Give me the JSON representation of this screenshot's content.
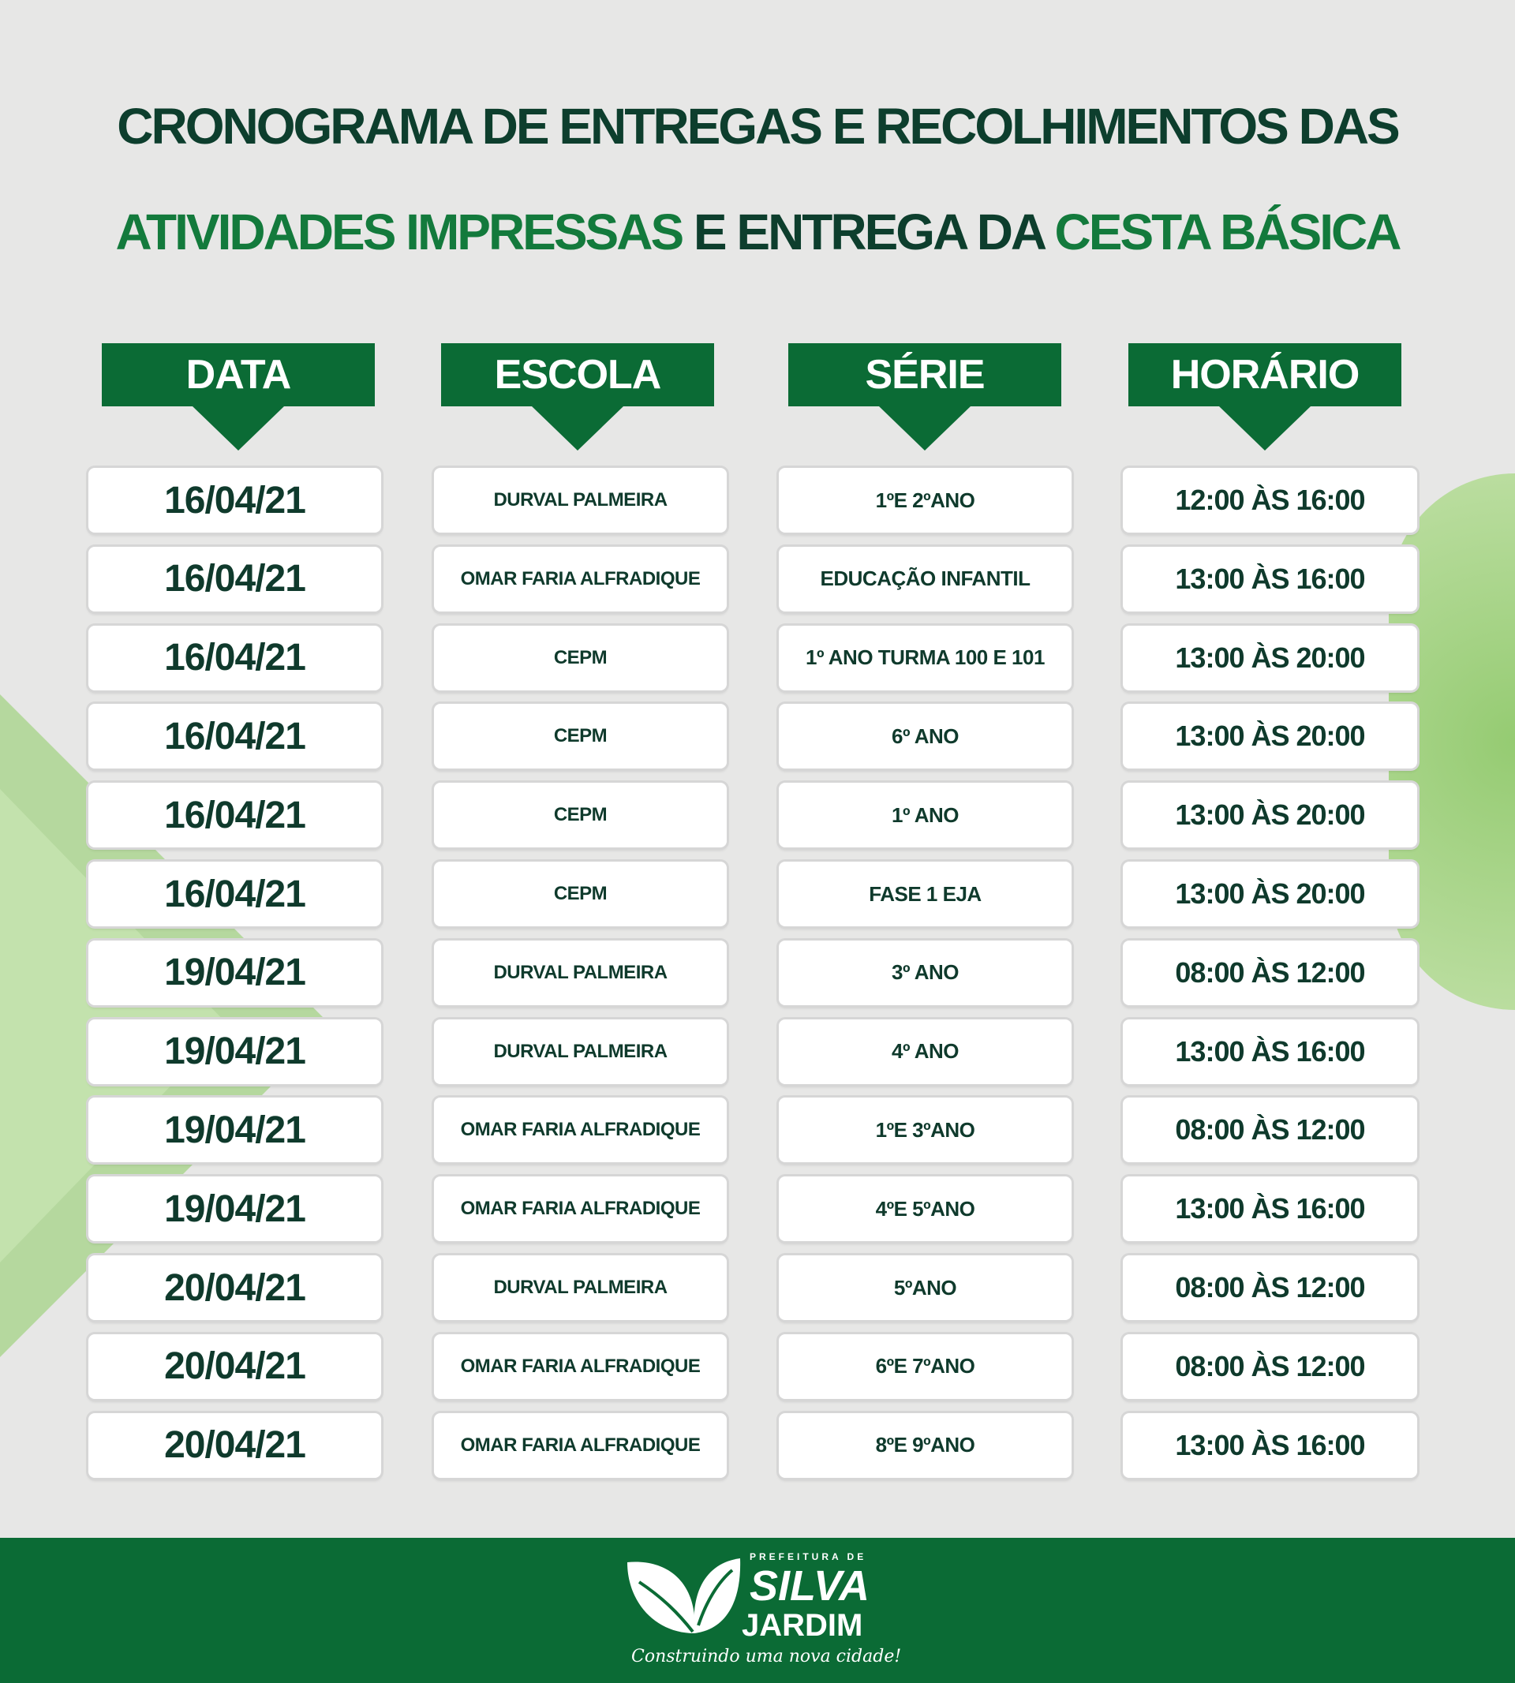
{
  "title": {
    "line1": "CRONOGRAMA DE ENTREGAS E RECOLHIMENTOS DAS",
    "line2_part1": "ATIVIDADES IMPRESSAS",
    "line2_part2": " E ENTREGA DA ",
    "line2_part3": "CESTA BÁSICA"
  },
  "colors": {
    "brand_green": "#0b6b35",
    "accent_green": "#137a3c",
    "text_dark": "#0d3e2d"
  },
  "headers": [
    "DATA",
    "ESCOLA",
    "SÉRIE",
    "HORÁRIO"
  ],
  "rows": [
    [
      "16/04/21",
      "DURVAL PALMEIRA",
      "1ºE 2ºANO",
      "12:00 ÀS 16:00"
    ],
    [
      "16/04/21",
      "OMAR FARIA ALFRADIQUE",
      "EDUCAÇÃO INFANTIL",
      "13:00 ÀS 16:00"
    ],
    [
      "16/04/21",
      "CEPM",
      "1º ANO TURMA 100 E 101",
      "13:00 ÀS 20:00"
    ],
    [
      "16/04/21",
      "CEPM",
      "6º ANO",
      "13:00 ÀS 20:00"
    ],
    [
      "16/04/21",
      "CEPM",
      "1º ANO",
      "13:00 ÀS 20:00"
    ],
    [
      "16/04/21",
      "CEPM",
      "FASE 1 EJA",
      "13:00 ÀS 20:00"
    ],
    [
      "19/04/21",
      "DURVAL PALMEIRA",
      "3º ANO",
      "08:00 ÀS 12:00"
    ],
    [
      "19/04/21",
      "DURVAL PALMEIRA",
      "4º ANO",
      "13:00 ÀS 16:00"
    ],
    [
      "19/04/21",
      "OMAR FARIA ALFRADIQUE",
      "1ºE 3ºANO",
      "08:00 ÀS 12:00"
    ],
    [
      "19/04/21",
      "OMAR FARIA ALFRADIQUE",
      "4ºE 5ºANO",
      "13:00 ÀS 16:00"
    ],
    [
      "20/04/21",
      "DURVAL PALMEIRA",
      "5ºANO",
      "08:00 ÀS 12:00"
    ],
    [
      "20/04/21",
      "OMAR FARIA ALFRADIQUE",
      "6ºE 7ºANO",
      "08:00 ÀS 12:00"
    ],
    [
      "20/04/21",
      "OMAR FARIA ALFRADIQUE",
      "8ºE 9ºANO",
      "13:00 ÀS 16:00"
    ]
  ],
  "footer": {
    "logo_prefix": "PREFEITURA DE",
    "logo_line1": "SILVA",
    "logo_line2": "JARDIM",
    "slogan": "Construindo uma nova cidade!"
  }
}
